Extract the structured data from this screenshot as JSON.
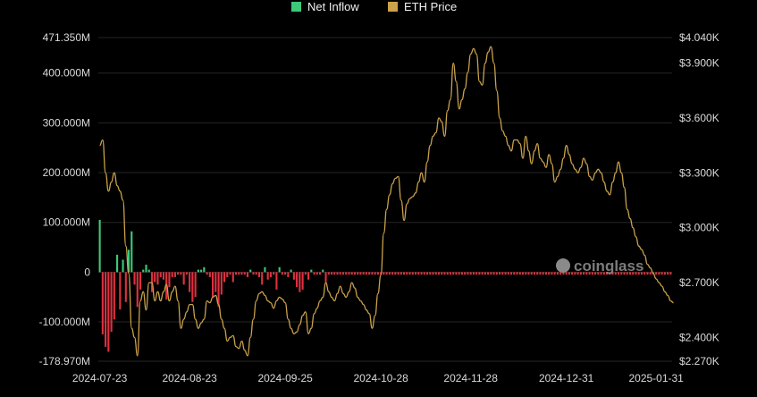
{
  "watermark": "coinglass",
  "chart_data": {
    "type": "bar",
    "colors": {
      "inflow_positive": "#3dc97a",
      "inflow_negative": "#e0313f",
      "price_line": "#caa24a",
      "grid": "#262626",
      "background": "#000000"
    },
    "legend": {
      "placement": "top-center",
      "items": [
        {
          "label": "Net Inflow",
          "color": "#3dc97a"
        },
        {
          "label": "ETH Price",
          "color": "#caa24a"
        }
      ]
    },
    "y_left": {
      "ticks": [
        "471.350M",
        "400.000M",
        "300.000M",
        "200.000M",
        "100.000M",
        "0",
        "-100.000M",
        "-178.970M"
      ],
      "tick_values": [
        471.35,
        400,
        300,
        200,
        100,
        0,
        -100,
        -178.97
      ],
      "range": [
        -178.97,
        471.35
      ],
      "unit": "M"
    },
    "y_right": {
      "ticks": [
        "$4.040K",
        "$3.900K",
        "$3.600K",
        "$3.300K",
        "$3.000K",
        "$2.700K",
        "$2.400K",
        "$2.270K"
      ],
      "tick_values": [
        4040,
        3900,
        3600,
        3300,
        3000,
        2700,
        2400,
        2270
      ],
      "range": [
        2270,
        4040
      ],
      "unit": "USD"
    },
    "x_ticks": [
      "2024-07-23",
      "2024-08-23",
      "2024-09-25",
      "2024-10-28",
      "2024-11-28",
      "2024-12-31",
      "2025-01-31"
    ],
    "x_tick_index": [
      0,
      31,
      64,
      97,
      128,
      161,
      192
    ],
    "grid": true,
    "series": [
      {
        "name": "Net Inflow",
        "type": "bar",
        "values": [
          105,
          -125,
          -150,
          -160,
          -120,
          -95,
          35,
          -75,
          25,
          -60,
          45,
          82,
          -25,
          -70,
          -35,
          5,
          15,
          5,
          -40,
          -20,
          -25,
          -10,
          -15,
          -55,
          -30,
          -10,
          -10,
          -5,
          -5,
          -25,
          -5,
          -40,
          -60,
          -50,
          5,
          5,
          10,
          -5,
          -10,
          -50,
          -40,
          -70,
          -45,
          -20,
          -10,
          -5,
          -20,
          -5,
          -5,
          -5,
          -5,
          -10,
          5,
          -5,
          -5,
          -10,
          -25,
          10,
          -15,
          -10,
          -5,
          -35,
          10,
          -5,
          -5,
          -10,
          5,
          -15,
          -30,
          -40,
          -35,
          -5,
          -15,
          5,
          -5,
          -5,
          -5,
          5,
          -20,
          -5,
          -5,
          -5,
          -5,
          -5,
          -5,
          -5,
          -5,
          -5,
          -5,
          -5,
          -5,
          -5,
          -5,
          -5,
          -5,
          -5,
          -5,
          -5,
          -5,
          -5,
          -5,
          -5,
          -5,
          -5,
          -5,
          -5,
          -5,
          -5,
          -5,
          -5,
          -5,
          -5,
          -5,
          -5,
          -5,
          -5,
          -5,
          -5,
          -5,
          -5,
          -5,
          -5,
          -5,
          -5,
          -5,
          -5,
          -5,
          -5,
          -5,
          -5,
          -5,
          -5,
          -5,
          -5,
          -5,
          -5,
          -5,
          -5,
          -5,
          -5,
          -5,
          -5,
          -5,
          -5,
          -5,
          -5,
          -5,
          -5,
          -5,
          -5,
          -5,
          -5,
          -5,
          -5,
          -5,
          -5,
          -5,
          -5,
          -5,
          -5,
          -5,
          -5,
          -5,
          -5,
          -5,
          -5,
          -5,
          -5,
          -5,
          -5,
          -5,
          -5,
          -5,
          -5,
          -5,
          -5,
          -5,
          -5,
          -5,
          -5,
          -5,
          -5,
          -5,
          -5,
          -5,
          -5,
          -5,
          -5,
          -5,
          -5,
          -5,
          -5,
          -5,
          -5,
          -5,
          -5,
          -5,
          -5
        ]
      },
      {
        "name": "ETH Price",
        "type": "line",
        "values": [
          3450,
          3480,
          3300,
          3200,
          3250,
          3300,
          3230,
          3200,
          3150,
          2900,
          2750,
          2450,
          2400,
          2300,
          2600,
          2650,
          2550,
          2700,
          2700,
          2600,
          2650,
          2600,
          2650,
          2690,
          2600,
          2650,
          2680,
          2600,
          2450,
          2500,
          2540,
          2580,
          2580,
          2500,
          2450,
          2480,
          2500,
          2600,
          2590,
          2620,
          2630,
          2580,
          2500,
          2450,
          2380,
          2400,
          2410,
          2350,
          2340,
          2380,
          2330,
          2300,
          2400,
          2500,
          2600,
          2640,
          2650,
          2630,
          2600,
          2590,
          2560,
          2600,
          2620,
          2610,
          2590,
          2500,
          2450,
          2420,
          2430,
          2470,
          2520,
          2540,
          2420,
          2450,
          2530,
          2560,
          2600,
          2620,
          2700,
          2650,
          2620,
          2600,
          2640,
          2680,
          2640,
          2620,
          2650,
          2700,
          2670,
          2620,
          2600,
          2580,
          2550,
          2530,
          2450,
          2520,
          2640,
          2740,
          2970,
          3100,
          3180,
          3240,
          3270,
          3280,
          3150,
          3040,
          3130,
          3160,
          3170,
          3190,
          3250,
          3300,
          3250,
          3360,
          3450,
          3500,
          3520,
          3600,
          3580,
          3500,
          3640,
          3700,
          3900,
          3800,
          3650,
          3700,
          3760,
          3850,
          3950,
          3980,
          3950,
          3800,
          3780,
          3900,
          3960,
          3990,
          3900,
          3750,
          3600,
          3530,
          3500,
          3450,
          3420,
          3480,
          3480,
          3460,
          3380,
          3500,
          3420,
          3350,
          3420,
          3460,
          3380,
          3360,
          3330,
          3400,
          3350,
          3250,
          3280,
          3320,
          3380,
          3450,
          3400,
          3350,
          3320,
          3300,
          3330,
          3380,
          3350,
          3280,
          3260,
          3300,
          3320,
          3300,
          3250,
          3200,
          3180,
          3250,
          3300,
          3360,
          3300,
          3220,
          3100,
          3050,
          3000,
          2950,
          2900,
          2880,
          2850,
          2800,
          2780,
          2750,
          2720,
          2700,
          2680,
          2650,
          2630,
          2600,
          2590
        ]
      }
    ]
  }
}
